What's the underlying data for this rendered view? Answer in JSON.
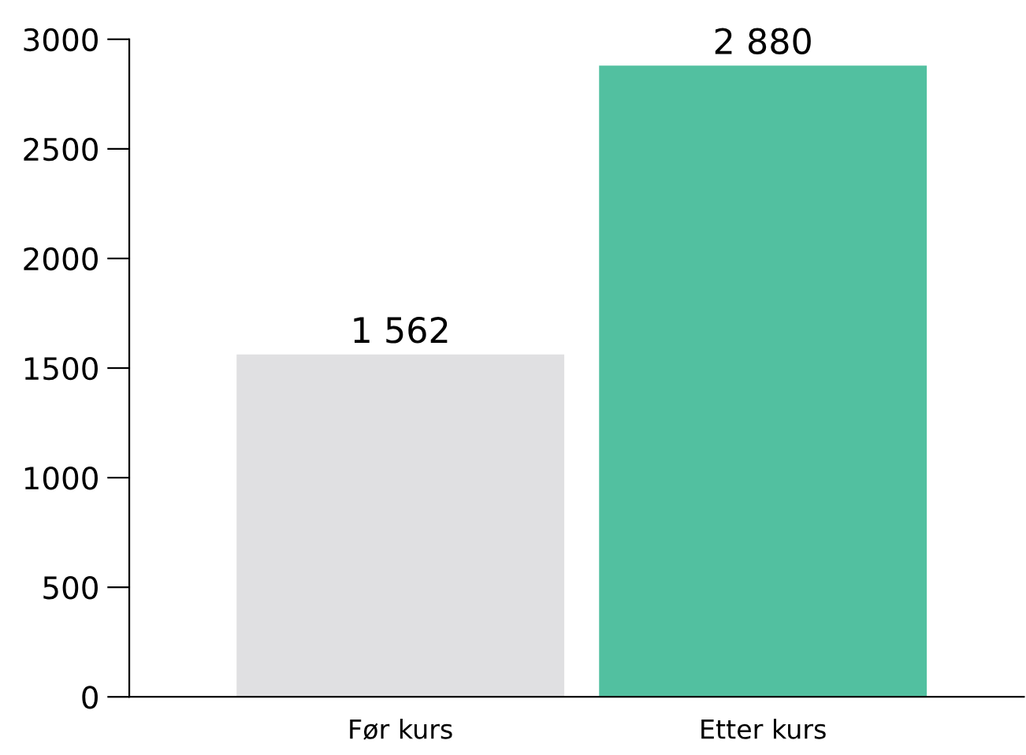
{
  "chart_data": {
    "type": "bar",
    "categories": [
      "Før kurs",
      "Etter kurs"
    ],
    "values": [
      1562,
      2880
    ],
    "colors": [
      "#e0e0e2",
      "#52c0a0"
    ],
    "value_labels": [
      "1 562",
      "2 880"
    ],
    "ylim": [
      0,
      3000
    ],
    "yticks": [
      0,
      500,
      1000,
      1500,
      2000,
      2500,
      3000
    ],
    "grid": false,
    "legend": false
  }
}
